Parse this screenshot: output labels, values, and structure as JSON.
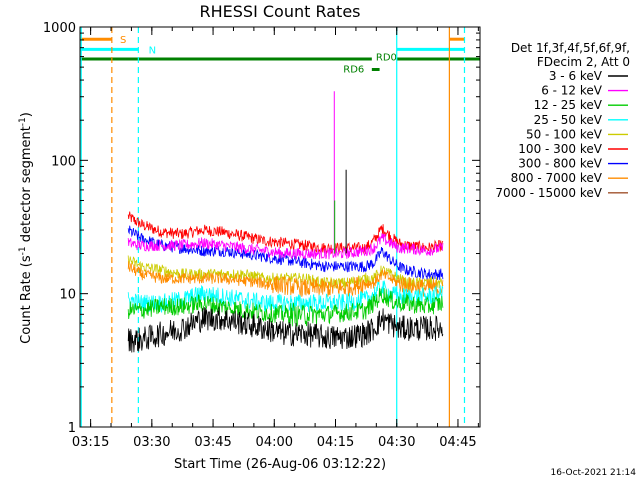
{
  "chart_data": {
    "type": "line",
    "title": "RHESSI Count Rates",
    "xlabel": "Start Time (26-Aug-06 03:12:22)",
    "ylabel_main": "Count Rate (s",
    "ylabel_sup1": "-1",
    "ylabel_mid": " detector segment",
    "ylabel_sup2": "-1",
    "ylabel_end": ")",
    "yscale": "log",
    "xlim_minutes": [
      0,
      98
    ],
    "ylim": [
      1,
      1000
    ],
    "x_ticks": [
      {
        "label": "03:15",
        "min": 2.6
      },
      {
        "label": "03:30",
        "min": 17.6
      },
      {
        "label": "03:45",
        "min": 32.6
      },
      {
        "label": "04:00",
        "min": 47.6
      },
      {
        "label": "04:15",
        "min": 62.6
      },
      {
        "label": "04:30",
        "min": 77.6
      },
      {
        "label": "04:45",
        "min": 92.6
      }
    ],
    "y_ticks": [
      {
        "label": "1",
        "value": 1
      },
      {
        "label": "10",
        "value": 10
      },
      {
        "label": "100",
        "value": 100
      },
      {
        "label": "1000",
        "value": 1000
      }
    ],
    "legend": {
      "header": [
        "Det 1f,3f,4f,5f,6f,9f,",
        "FDecim 2, Att 0"
      ],
      "placement": "right",
      "entries": [
        {
          "label": "3 - 6 keV",
          "color": "#000000"
        },
        {
          "label": "6 - 12 keV",
          "color": "#ff00ff"
        },
        {
          "label": "12 - 25 keV",
          "color": "#00cc00"
        },
        {
          "label": "25 - 50 keV",
          "color": "#00ffff"
        },
        {
          "label": "50 - 100 keV",
          "color": "#cccc00"
        },
        {
          "label": "100 - 300 keV",
          "color": "#ff0000"
        },
        {
          "label": "300 - 800 keV",
          "color": "#0000ff"
        },
        {
          "label": "800 - 7000 keV",
          "color": "#ff8c00"
        },
        {
          "label": "7000 - 15000 keV",
          "color": "#a0522d"
        }
      ]
    },
    "series": [
      {
        "color": "#ff0000",
        "data_start_min": 11.8,
        "data_end_min": 88.9,
        "x": [
          11.8,
          15,
          20,
          25,
          30,
          35,
          40,
          45,
          50,
          55,
          60,
          65,
          70,
          72,
          74,
          76,
          78,
          80,
          85,
          88.9
        ],
        "y": [
          38,
          33,
          29,
          28,
          30,
          29,
          27,
          25,
          24,
          23,
          22,
          22,
          22,
          25,
          31,
          27,
          24,
          23,
          22,
          23
        ]
      },
      {
        "color": "#0000ff",
        "data_start_min": 11.8,
        "data_end_min": 88.9,
        "x": [
          11.8,
          15,
          20,
          25,
          30,
          35,
          40,
          45,
          50,
          55,
          60,
          65,
          70,
          72,
          74,
          76,
          78,
          80,
          85,
          88.9
        ],
        "y": [
          30,
          26,
          23,
          22,
          21,
          21,
          20,
          19,
          18,
          17,
          16,
          16,
          16,
          17,
          21,
          18,
          16,
          15,
          14,
          14
        ]
      },
      {
        "color": "#ff00ff",
        "data_start_min": 11.8,
        "data_end_min": 88.9,
        "x": [
          11.8,
          15,
          20,
          25,
          30,
          35,
          40,
          45,
          50,
          55,
          60,
          65,
          70,
          72,
          74,
          76,
          78,
          80,
          85,
          88.9
        ],
        "y": [
          24,
          23,
          23,
          23,
          24,
          23,
          22,
          21,
          20,
          20,
          20,
          20,
          21,
          22,
          26,
          24,
          22,
          22,
          21,
          22
        ]
      },
      {
        "color": "#cccc00",
        "data_start_min": 11.8,
        "data_end_min": 88.9,
        "x": [
          11.8,
          15,
          20,
          25,
          30,
          35,
          40,
          45,
          50,
          55,
          60,
          65,
          70,
          72,
          74,
          76,
          78,
          80,
          85,
          88.9
        ],
        "y": [
          18,
          16,
          15,
          14,
          14,
          14,
          14,
          13,
          13,
          13,
          12,
          12,
          13,
          13,
          15,
          14,
          13,
          12,
          12,
          12
        ]
      },
      {
        "color": "#ff8c00",
        "data_start_min": 11.8,
        "data_end_min": 88.9,
        "x": [
          11.8,
          15,
          20,
          25,
          30,
          35,
          40,
          45,
          50,
          55,
          60,
          65,
          70,
          72,
          74,
          76,
          78,
          80,
          85,
          88.9
        ],
        "y": [
          16,
          14,
          13,
          13,
          13,
          13,
          12.5,
          12,
          11.5,
          11,
          11,
          11,
          12,
          12,
          14,
          13,
          12,
          11.5,
          11,
          11
        ]
      },
      {
        "color": "#00ffff",
        "data_start_min": 11.8,
        "data_end_min": 88.9,
        "x": [
          11.8,
          15,
          20,
          25,
          30,
          35,
          40,
          45,
          50,
          55,
          60,
          65,
          70,
          72,
          74,
          76,
          78,
          80,
          85,
          88.9
        ],
        "y": [
          9,
          8.5,
          8.5,
          9,
          10,
          9.5,
          9,
          8.5,
          8.5,
          8.5,
          8.5,
          8.5,
          9,
          10,
          11,
          10,
          9.5,
          9.5,
          9.5,
          10
        ]
      },
      {
        "color": "#00cc00",
        "data_start_min": 11.8,
        "data_end_min": 88.9,
        "x": [
          11.8,
          15,
          20,
          25,
          30,
          35,
          40,
          45,
          50,
          55,
          60,
          65,
          70,
          72,
          74,
          76,
          78,
          80,
          85,
          88.9
        ],
        "y": [
          7.5,
          7.5,
          8,
          8,
          8.5,
          8,
          7.5,
          7.2,
          7,
          7,
          7,
          7.2,
          7.5,
          8.5,
          10,
          9,
          8.5,
          8.5,
          8,
          8.5
        ]
      },
      {
        "color": "#000000",
        "data_start_min": 11.8,
        "data_end_min": 88.9,
        "x": [
          11.8,
          15,
          20,
          25,
          30,
          35,
          40,
          45,
          50,
          55,
          60,
          65,
          70,
          72,
          74,
          76,
          78,
          80,
          85,
          88.9
        ],
        "y": [
          4.5,
          4.5,
          5,
          5.5,
          6.5,
          6.5,
          6,
          5.5,
          5,
          5,
          4.7,
          4.7,
          5,
          5.5,
          6.5,
          6,
          5.5,
          5.5,
          5.5,
          5.5
        ]
      }
    ],
    "spikes": [
      {
        "color": "#ff00ff",
        "min": 62.3,
        "peak": 330
      },
      {
        "color": "#00cc00",
        "min": 62.4,
        "peak": 50
      },
      {
        "color": "#000000",
        "min": 65.2,
        "peak": 85
      }
    ],
    "vertical_markers": [
      {
        "min": 0.3,
        "color": "#00ffff",
        "style": "solid"
      },
      {
        "min": 7.8,
        "color": "#ff8c00",
        "style": "dashed"
      },
      {
        "min": 14.3,
        "color": "#00ffff",
        "style": "dashed"
      },
      {
        "min": 77.6,
        "color": "#00ffff",
        "style": "solid"
      },
      {
        "min": 90.5,
        "color": "#ff8c00",
        "style": "solid"
      },
      {
        "min": 94.2,
        "color": "#00ffff",
        "style": "dashed"
      }
    ],
    "flag_bars": [
      {
        "label": "S",
        "color": "#ff8c00",
        "start_min": 0,
        "end_min": 7.8,
        "value": 810,
        "label_min": 9.8,
        "label_value": 810
      },
      {
        "label": "N",
        "color": "#00ffff",
        "start_min": 0,
        "end_min": 14.3,
        "value": 680,
        "label_min": 16.8,
        "label_value": 680
      },
      {
        "label": "S",
        "color": "#ff8c00",
        "start_min": 90.5,
        "end_min": 94.2,
        "value": 810,
        "label_min": -1,
        "label_value": 0
      },
      {
        "label": "N",
        "color": "#00ffff",
        "start_min": 77.6,
        "end_min": 94.2,
        "value": 680,
        "label_min": -1,
        "label_value": 0
      },
      {
        "label": "",
        "color": "#008000",
        "start_min": 0,
        "end_min": 71.5,
        "value": 575,
        "label_min": -1,
        "label_value": 0
      },
      {
        "label": "",
        "color": "#008000",
        "start_min": 77.6,
        "end_min": 98,
        "value": 575,
        "label_min": -1,
        "label_value": 0
      },
      {
        "label": "RD6",
        "color": "#008000",
        "start_min": 71.5,
        "end_min": 73.4,
        "value": 480,
        "label_min": 64.5,
        "label_value": 490
      }
    ],
    "annotations": [
      {
        "text": "RD0",
        "color": "#008000",
        "min": 72.5,
        "value": 600
      }
    ],
    "footer_date": "16-Oct-2021 21:14"
  }
}
